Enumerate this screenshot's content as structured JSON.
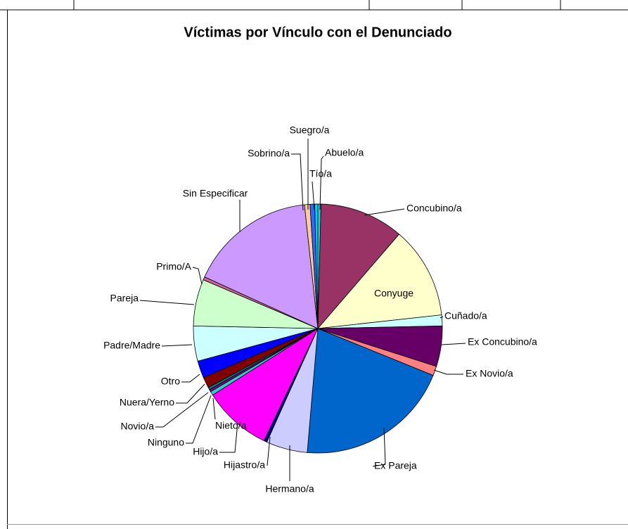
{
  "chart_data": {
    "type": "pie",
    "title": "Víctimas por Vínculo con el Denunciado",
    "categories": [
      "Abuelo/a",
      "Concubino/a",
      "Conyuge",
      "Cuñado/a",
      "Ex Concubino/a",
      "Ex Novio/a",
      "Ex Pareja",
      "Hermano/a",
      "Hijastro/a",
      "Hijo/a",
      "Nieto/a",
      "Ninguno",
      "Novio/a",
      "Nuera/Yerno",
      "Otro",
      "Padre/Madre",
      "Pareja",
      "Primo/A",
      "Sin Especificar",
      "Sobrino/a",
      "Suegro/a",
      "Tío/a"
    ],
    "values": [
      0.4,
      10.8,
      11.8,
      1.4,
      5.2,
      1.2,
      20,
      5.3,
      0.4,
      8.8,
      0.5,
      0.3,
      0.3,
      1.4,
      2.2,
      4.5,
      6,
      0.4,
      16.3,
      0.7,
      0.6,
      0.4
    ],
    "colors": [
      "#33CCCC",
      "#993366",
      "#FFFFCC",
      "#CCFFFF",
      "#660066",
      "#FF8080",
      "#0066CC",
      "#CCCCFF",
      "#000080",
      "#FF00FF",
      "#33CCCC",
      "#800080",
      "#008080",
      "#800000",
      "#0000FF",
      "#CCFFFF",
      "#CCFFCC",
      "#CC6699",
      "#CC99FF",
      "#FFCC99",
      "#3366FF",
      "#00CCFF"
    ]
  }
}
